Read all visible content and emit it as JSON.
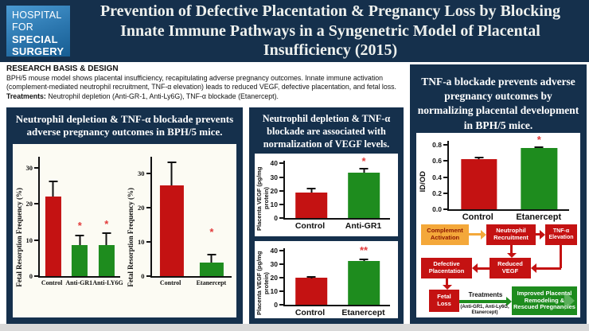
{
  "logo": {
    "line1": "HOSPITAL",
    "line2": "FOR",
    "line3": "SPECIAL",
    "line4": "SURGERY"
  },
  "header": {
    "title": "Prevention of Defective Placentation & Pregnancy Loss by Blocking Innate Immune Pathways in a Syngenetric Model of Placental Insufficiency (2015)"
  },
  "research": {
    "heading": "RESEARCH BASIS & DESIGN",
    "body": "BPH/5 mouse model shows placental insufficiency, recapitulating adverse pregnancy outcomes. Innate immune activation (complement-mediated neutrophil recruitment, TNF-α elevation) leads to reduced VEGF, defective placentation, and fetal loss.",
    "treatments_label": "Treatments:",
    "treatments_text": " Neutrophil depletion (Anti-GR-1, Anti-Ly6G), TNF-α blockade (Etanercept)."
  },
  "panels": {
    "left": {
      "header": "Neutrophil depletion & TNF-α blockade prevents adverse pregnancy outcomes in BPH/5 mice."
    },
    "middle": {
      "header": "Neutrophil depletion & TNF-α blockade are associated with normalization of VEGF levels."
    },
    "right": {
      "header": "TNF-a blockade prevents adverse pregnancy outcomes by normalizing placental development in BPH/5 mice."
    }
  },
  "colors": {
    "navy": "#15304c",
    "red_bar": "#c41212",
    "green_bar": "#1e8c1e",
    "orange": "#f4a83a",
    "asterisk_red": "#e23b3b",
    "logo_blue": "#2b76ae",
    "bottom_strip": "#d8d8d8"
  },
  "chart_data": [
    {
      "type": "bar",
      "title": "",
      "xlabel": "",
      "ylabel": "Fetal Resorption Frequency (%)",
      "categories": [
        "Control",
        "Anti-GR1",
        "Anti-LY6G"
      ],
      "values": [
        22,
        8.5,
        8.5
      ],
      "errors": [
        4.5,
        3,
        3.5
      ],
      "sig": [
        "",
        "*",
        "*"
      ],
      "sig_pos": [
        null,
        12.5,
        13
      ],
      "bar_colors": [
        "#c41212",
        "#1e8c1e",
        "#1e8c1e"
      ],
      "ylim": [
        0,
        33
      ],
      "ytick_values": [
        0,
        10,
        20,
        30
      ],
      "ytick_labels": [
        "0",
        "10",
        "20",
        "30"
      ],
      "grid": false,
      "legend": "none"
    },
    {
      "type": "bar",
      "title": "",
      "xlabel": "",
      "ylabel": "Fetal Resorption Frequency (%)",
      "categories": [
        "Control",
        "Etanercept"
      ],
      "values": [
        26.5,
        4
      ],
      "errors": [
        7,
        2.5
      ],
      "sig": [
        "",
        "*"
      ],
      "sig_pos": [
        null,
        11.5
      ],
      "bar_colors": [
        "#c41212",
        "#1e8c1e"
      ],
      "ylim": [
        0,
        35
      ],
      "ytick_values": [
        0,
        10,
        20,
        30
      ],
      "ytick_labels": [
        "0",
        "10",
        "20",
        "30"
      ],
      "grid": false,
      "legend": "none"
    },
    {
      "type": "bar",
      "title": "",
      "xlabel": "",
      "ylabel": "Placenta VEGF (pg/mg protein)",
      "categories": [
        "Control",
        "Anti-GR1"
      ],
      "values": [
        18.5,
        33
      ],
      "errors": [
        3.5,
        3.5
      ],
      "sig": [
        "",
        "*"
      ],
      "sig_pos": [
        null,
        38
      ],
      "bar_colors": [
        "#c41212",
        "#1e8c1e"
      ],
      "ylim": [
        0,
        42
      ],
      "ytick_values": [
        0,
        10,
        20,
        30,
        40
      ],
      "ytick_labels": [
        "0",
        "10",
        "20",
        "30",
        "40"
      ],
      "grid": false,
      "legend": "none"
    },
    {
      "type": "bar",
      "title": "",
      "xlabel": "",
      "ylabel": "Placenta VEGF (pg/mg protein)",
      "categories": [
        "Control",
        "Etanercept"
      ],
      "values": [
        20,
        32.5
      ],
      "errors": [
        1.5,
        2
      ],
      "sig": [
        "",
        "**"
      ],
      "sig_pos": [
        null,
        36.5
      ],
      "bar_colors": [
        "#c41212",
        "#1e8c1e"
      ],
      "ylim": [
        0,
        42
      ],
      "ytick_values": [
        0,
        10,
        20,
        30,
        40
      ],
      "ytick_labels": [
        "0",
        "10",
        "20",
        "30",
        "40"
      ],
      "grid": false,
      "legend": "none"
    },
    {
      "type": "bar",
      "title": "",
      "xlabel": "",
      "ylabel": "ID/OD",
      "categories": [
        "Control",
        "Etanercept"
      ],
      "values": [
        0.62,
        0.76
      ],
      "errors": [
        0.03,
        0.02
      ],
      "sig": [
        "",
        "*"
      ],
      "sig_pos": [
        null,
        0.8
      ],
      "bar_colors": [
        "#c41212",
        "#1e8c1e"
      ],
      "ylim": [
        0,
        0.85
      ],
      "ytick_values": [
        0,
        0.2,
        0.4,
        0.6,
        0.8
      ],
      "ytick_labels": [
        "0.0",
        "0.2",
        "0.4",
        "0.6",
        "0.8"
      ],
      "grid": false,
      "legend": "none"
    }
  ],
  "diagram": {
    "complement": "Complement Activation",
    "neutrophil": "Neutrophil Recruitment",
    "tnf": "TNF-α Elevation",
    "defective": "Defective Placentation",
    "reduced_vegf": "Reduced VEGF",
    "fetal_loss": "Fetal Loss",
    "improved": "Improved Placental Remodeling & Rescued Pregnancies",
    "treatments_label": "Treatments",
    "treatments_detail": "(Anti-GR1, Anti-Ly6G, Etanercept)"
  }
}
